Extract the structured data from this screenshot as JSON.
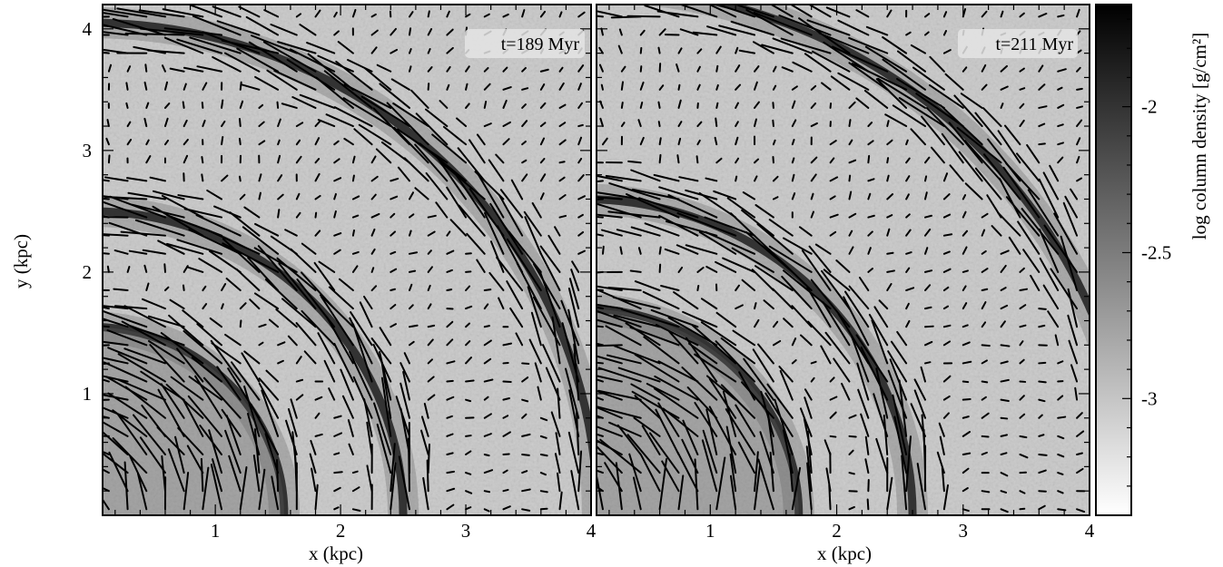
{
  "chart_data": [
    {
      "type": "heatmap",
      "overlay": "velocity vectors",
      "panel_label": "t=189 Myr",
      "xlabel": "x (kpc)",
      "ylabel": "y (kpc)",
      "xlim": [
        0.1,
        4.0
      ],
      "ylim": [
        0.0,
        4.2
      ],
      "x_ticks": [
        1,
        2,
        3,
        4
      ],
      "y_ticks": [
        1,
        2,
        3,
        4
      ],
      "shock_fronts": [
        {
          "name": "outer",
          "center": [
            0,
            0
          ],
          "radius": 4.05
        },
        {
          "name": "inner",
          "center": [
            0,
            0
          ],
          "radius": 2.5
        },
        {
          "name": "core",
          "center": [
            0,
            0
          ],
          "radius": 1.55
        }
      ]
    },
    {
      "type": "heatmap",
      "overlay": "velocity vectors",
      "panel_label": "t=211 Myr",
      "xlabel": "x (kpc)",
      "ylabel": "",
      "xlim": [
        0.1,
        4.0
      ],
      "ylim": [
        0.0,
        4.2
      ],
      "x_ticks": [
        1,
        2,
        3,
        4
      ],
      "y_ticks": [
        1,
        2,
        3,
        4
      ],
      "shock_fronts": [
        {
          "name": "outer",
          "center": [
            0,
            0
          ],
          "radius": 4.35
        },
        {
          "name": "inner",
          "center": [
            0,
            0
          ],
          "radius": 2.6
        },
        {
          "name": "core",
          "center": [
            0,
            0
          ],
          "radius": 1.7
        }
      ]
    }
  ],
  "colorbar": {
    "label": "log column density [g/cm²]",
    "ticks": [
      -2,
      -2.5,
      -3
    ],
    "range": [
      -3.4,
      -1.65
    ],
    "colors": {
      "high": "#000000",
      "low": "#ffffff"
    }
  }
}
